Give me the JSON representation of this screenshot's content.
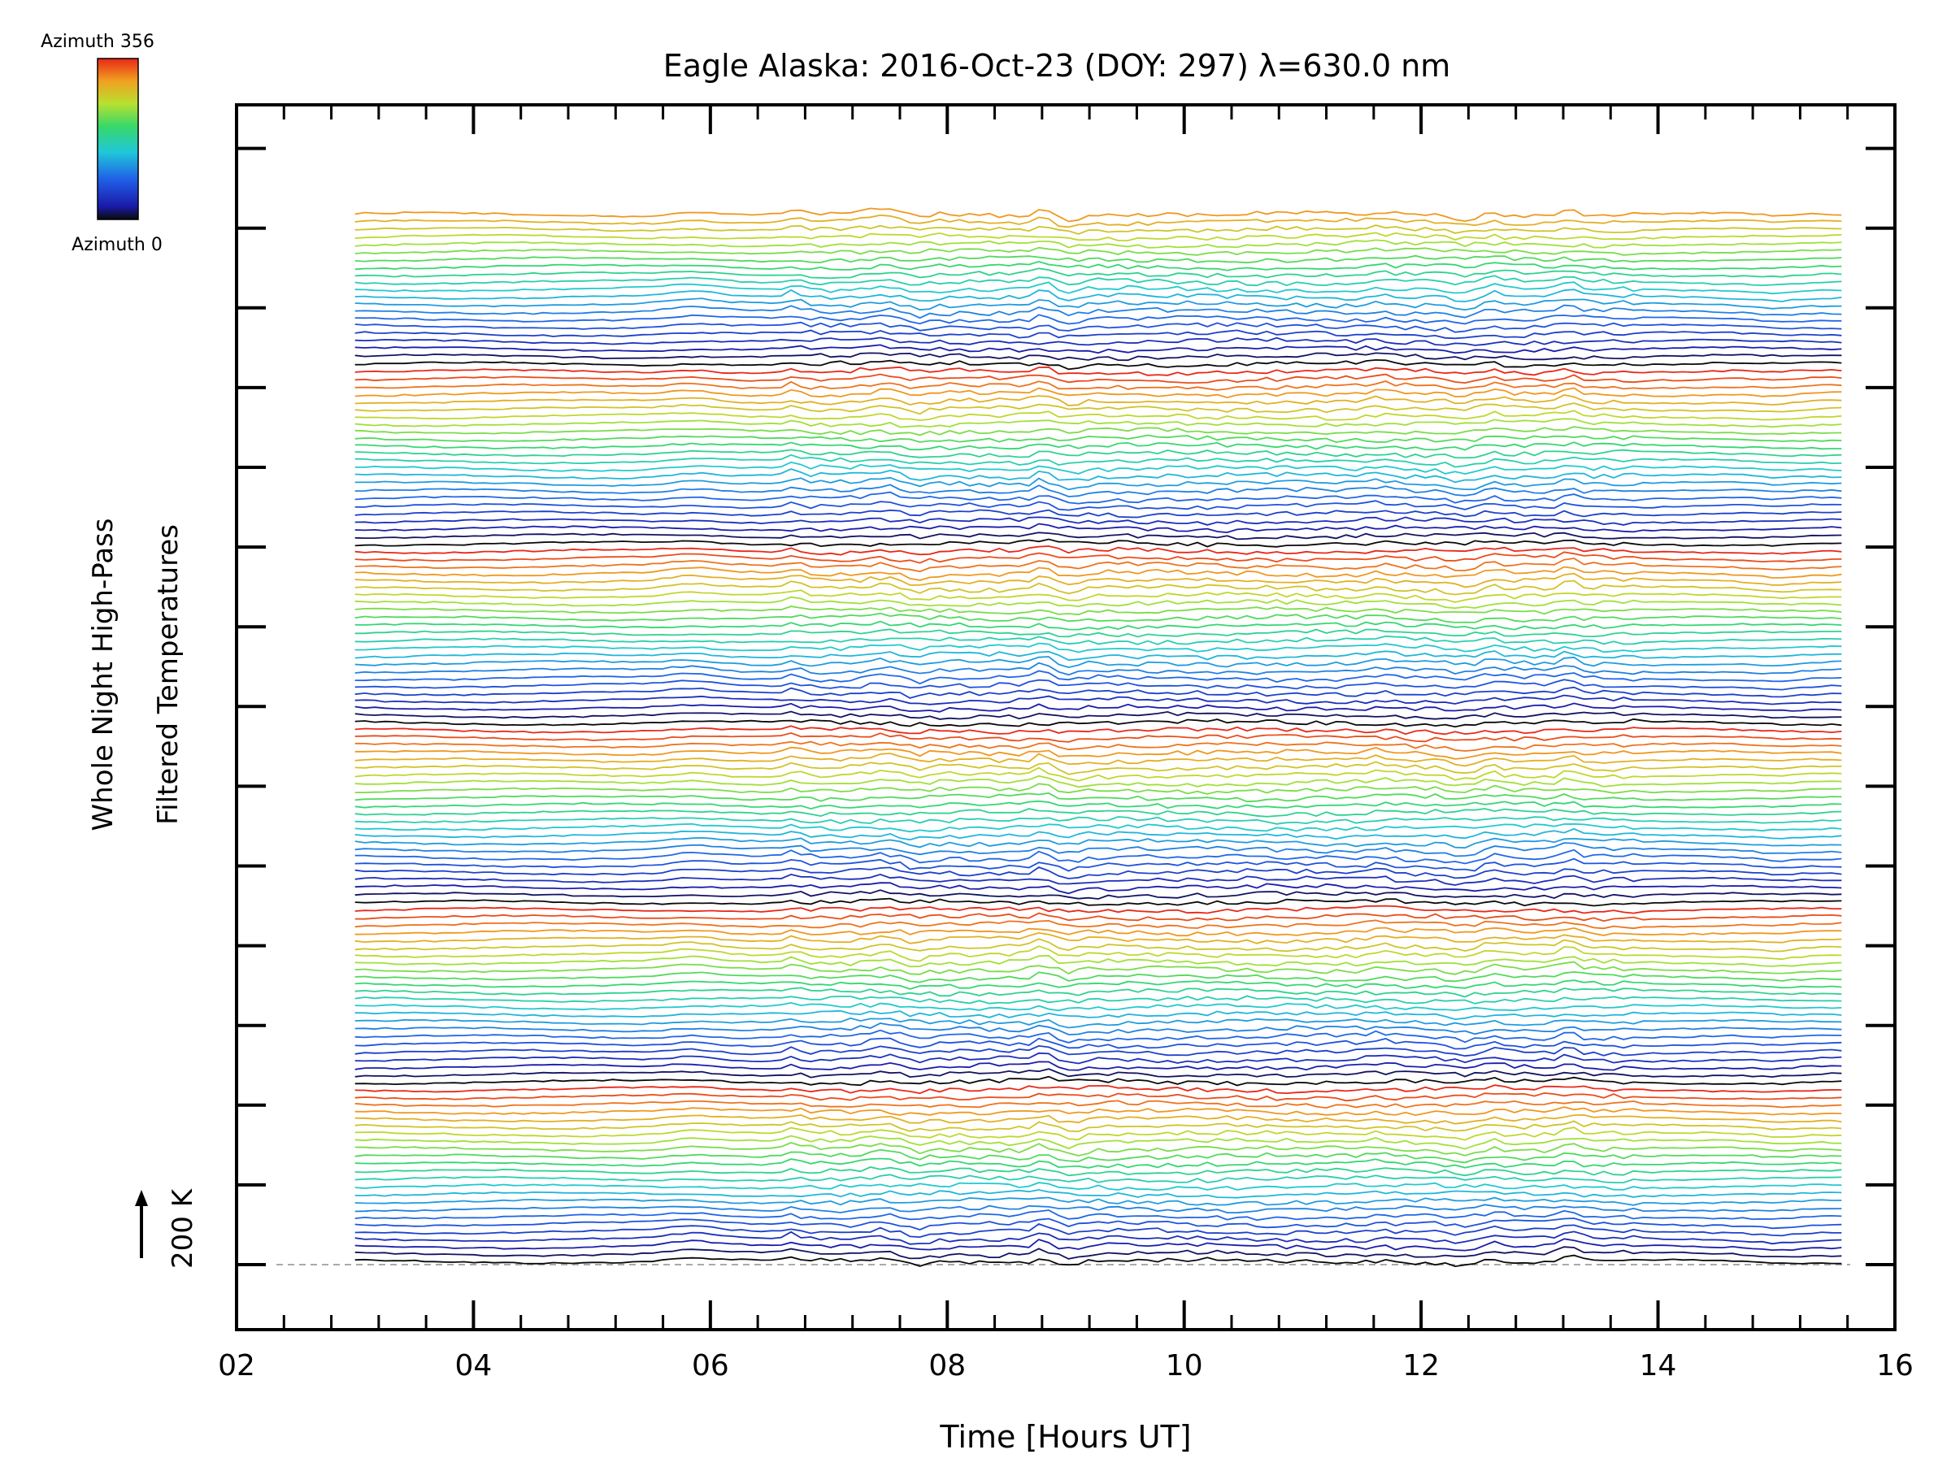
{
  "chart_data": {
    "type": "line",
    "title": "Eagle Alaska: 2016-Oct-23 (DOY: 297) λ=630.0 nm",
    "xlabel": "Time [Hours UT]",
    "ylabel_line1": "Whole Night High-Pass",
    "ylabel_line2": "Filtered Temperatures",
    "scale_label": "200 K",
    "xlim": [
      2,
      16
    ],
    "x_ticks": [
      "02",
      "04",
      "06",
      "08",
      "10",
      "12",
      "14",
      "16"
    ],
    "x_tick_values": [
      2,
      4,
      6,
      8,
      10,
      12,
      14,
      16
    ],
    "data_time_range": [
      3.0,
      15.55
    ],
    "n_traces": 141,
    "trace_offset_K": 200,
    "colorbar": {
      "top_label": "Azimuth 356",
      "bottom_label": "Azimuth 0",
      "colormap": "rainbow (black → blue → cyan → green → yellow → orange → red)"
    },
    "baseline": "dashed grey line at lowest trace"
  }
}
